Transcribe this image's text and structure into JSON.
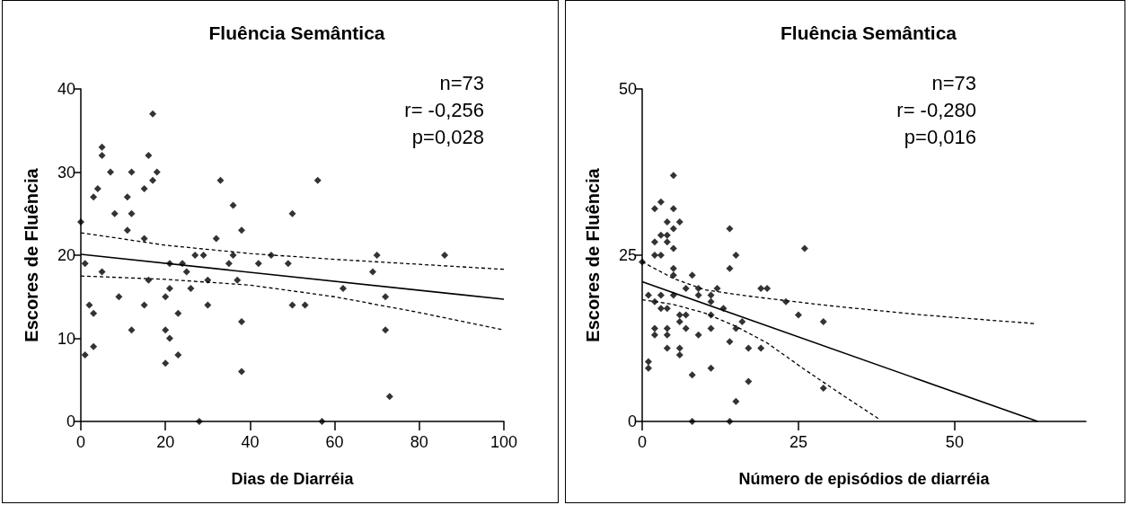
{
  "chart_data": [
    {
      "type": "scatter",
      "title": "Fluência Semântica",
      "xlabel": "Dias de Diarréia",
      "ylabel": "Escores de Fluência",
      "xlim": [
        0,
        100
      ],
      "xticks": [
        0,
        20,
        40,
        60,
        80,
        100
      ],
      "ylim": [
        0,
        40
      ],
      "yticks": [
        0,
        10,
        20,
        30,
        40
      ],
      "annotations": [
        "n=73",
        "r= -0,256",
        "p=0,028"
      ],
      "series": [
        {
          "marker": "diamond",
          "color": "#000000",
          "x": [
            0,
            1,
            1,
            2,
            3,
            3,
            3,
            4,
            5,
            5,
            5,
            7,
            8,
            9,
            11,
            11,
            12,
            12,
            12,
            15,
            15,
            15,
            16,
            16,
            17,
            17,
            18,
            20,
            20,
            20,
            21,
            21,
            21,
            23,
            23,
            24,
            25,
            26,
            27,
            28,
            29,
            30,
            30,
            32,
            33,
            35,
            36,
            36,
            37,
            38,
            38,
            38,
            42,
            45,
            49,
            50,
            50,
            53,
            56,
            57,
            62,
            69,
            70,
            72,
            72,
            73,
            86
          ],
          "values": [
            24,
            19,
            8,
            14,
            13,
            27,
            9,
            28,
            33,
            32,
            18,
            30,
            25,
            15,
            23,
            27,
            30,
            25,
            11,
            28,
            22,
            14,
            17,
            32,
            37,
            29,
            30,
            7,
            11,
            15,
            10,
            16,
            19,
            13,
            8,
            19,
            18,
            16,
            20,
            0,
            20,
            17,
            14,
            22,
            29,
            19,
            20,
            26,
            17,
            23,
            12,
            6,
            19,
            20,
            19,
            25,
            14,
            14,
            29,
            0,
            16,
            18,
            20,
            15,
            11,
            3,
            20
          ]
        },
        {
          "type": "line",
          "color": "#000000",
          "line_style": "solid",
          "x": [
            0,
            100
          ],
          "values": [
            20.1,
            14.7
          ]
        },
        {
          "type": "line",
          "color": "#000000",
          "line_style": "dashed",
          "x": [
            0,
            20,
            40,
            60,
            80,
            100
          ],
          "values": [
            22.7,
            21.2,
            20.2,
            19.5,
            18.9,
            18.3
          ]
        },
        {
          "type": "line",
          "color": "#000000",
          "line_style": "dashed",
          "x": [
            0,
            20,
            40,
            60,
            80,
            100
          ],
          "values": [
            17.5,
            17.1,
            16.4,
            15,
            13.1,
            11
          ]
        }
      ]
    },
    {
      "type": "scatter",
      "title": "Fluência Semântica",
      "xlabel": "Número de episódios de diarréia",
      "ylabel": "Escores de Fluência",
      "xlim": [
        0,
        71
      ],
      "xticks": [
        0,
        25,
        50
      ],
      "ylim": [
        0,
        50
      ],
      "yticks": [
        0,
        25,
        50
      ],
      "annotations": [
        "n=73",
        "r= -0,280",
        "p=0,016"
      ],
      "series": [
        {
          "marker": "diamond",
          "color": "#000000",
          "x": [
            0,
            1,
            1,
            1,
            2,
            2,
            2,
            2,
            2,
            2,
            3,
            3,
            3,
            3,
            3,
            4,
            4,
            4,
            4,
            4,
            4,
            4,
            5,
            5,
            5,
            5,
            5,
            5,
            5,
            6,
            6,
            6,
            6,
            6,
            7,
            7,
            7,
            8,
            8,
            8,
            9,
            9,
            9,
            11,
            11,
            11,
            11,
            11,
            12,
            13,
            14,
            14,
            14,
            14,
            15,
            15,
            15,
            16,
            17,
            17,
            19,
            19,
            20,
            23,
            25,
            26,
            29,
            29
          ],
          "values": [
            24,
            19,
            9,
            8,
            32,
            27,
            25,
            18,
            14,
            13,
            33,
            28,
            25,
            19,
            17,
            30,
            28,
            27,
            17,
            14,
            13,
            11,
            37,
            32,
            29,
            26,
            23,
            22,
            19,
            30,
            16,
            15,
            11,
            10,
            20,
            16,
            14,
            22,
            7,
            0,
            20,
            19,
            13,
            19,
            18,
            16,
            14,
            8,
            20,
            17,
            29,
            23,
            12,
            0,
            25,
            14,
            3,
            15,
            11,
            6,
            20,
            11,
            20,
            18,
            16,
            26,
            15,
            5
          ]
        },
        {
          "type": "line",
          "color": "#000000",
          "line_style": "solid",
          "x": [
            0,
            63.3
          ],
          "values": [
            21,
            0
          ]
        },
        {
          "type": "line",
          "color": "#000000",
          "line_style": "dashed",
          "x": [
            0,
            5,
            10,
            15,
            20,
            30,
            45,
            63
          ],
          "values": [
            24,
            21.5,
            19.8,
            19.1,
            18.5,
            17.4,
            16,
            14.7
          ]
        },
        {
          "type": "line",
          "color": "#000000",
          "line_style": "dashed",
          "x": [
            0,
            5,
            10,
            15,
            20,
            26,
            32,
            38
          ],
          "values": [
            18.3,
            17.6,
            16.3,
            14.3,
            11.8,
            7.8,
            4,
            0.3
          ]
        }
      ]
    }
  ]
}
